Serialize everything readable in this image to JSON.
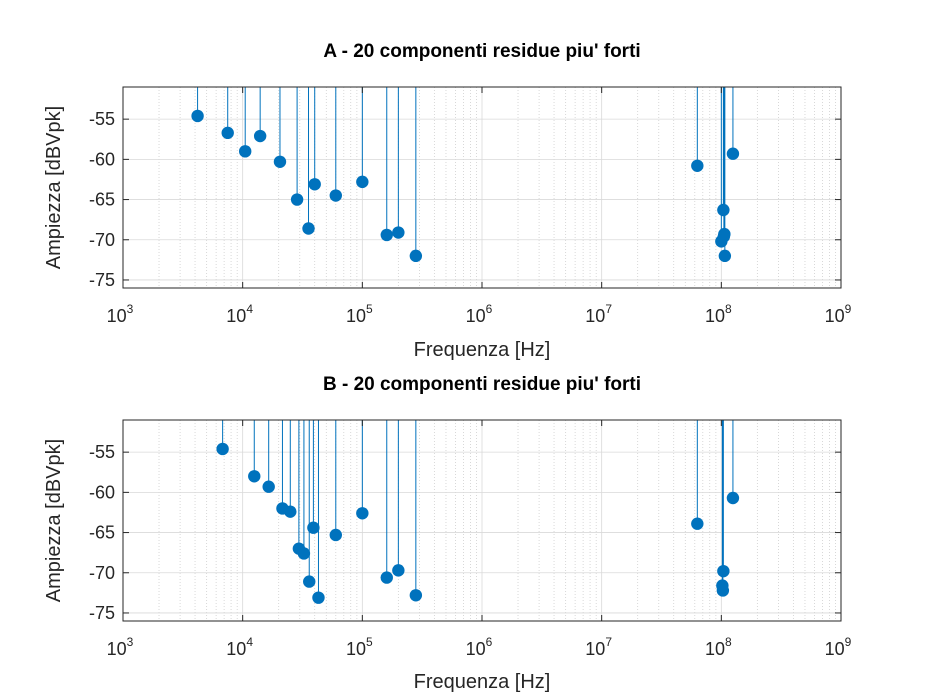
{
  "figure": {
    "background": "#ffffff",
    "marker_color": "#0072bd",
    "grid_color": "#d9d9d9",
    "axis_color": "#262626"
  },
  "chart_data": [
    {
      "type": "scatter",
      "style": "stem",
      "title": "A - 20 componenti residue piu' forti",
      "xlabel": "Frequenza [Hz]",
      "ylabel": "Ampiezza [dBVpk]",
      "xscale": "log",
      "xlim": [
        1000,
        1000000000
      ],
      "ylim": [
        -76,
        -51
      ],
      "xticks": [
        {
          "base": "10",
          "exp": "3",
          "value": 1000
        },
        {
          "base": "10",
          "exp": "4",
          "value": 10000
        },
        {
          "base": "10",
          "exp": "5",
          "value": 100000
        },
        {
          "base": "10",
          "exp": "6",
          "value": 1000000
        },
        {
          "base": "10",
          "exp": "7",
          "value": 10000000
        },
        {
          "base": "10",
          "exp": "8",
          "value": 100000000
        },
        {
          "base": "10",
          "exp": "9",
          "value": 1000000000
        }
      ],
      "yticks": [
        -55,
        -60,
        -65,
        -70,
        -75
      ],
      "grid": true,
      "stem_baseline": -51,
      "points": [
        {
          "x": 4200,
          "y": -54.6
        },
        {
          "x": 7500,
          "y": -56.7
        },
        {
          "x": 10500,
          "y": -59.0
        },
        {
          "x": 14000,
          "y": -57.1
        },
        {
          "x": 20500,
          "y": -60.3
        },
        {
          "x": 28500,
          "y": -65.0
        },
        {
          "x": 35500,
          "y": -68.6
        },
        {
          "x": 40000,
          "y": -63.1
        },
        {
          "x": 60000,
          "y": -64.5
        },
        {
          "x": 100000,
          "y": -62.8
        },
        {
          "x": 160000,
          "y": -69.4
        },
        {
          "x": 200000,
          "y": -69.1
        },
        {
          "x": 280000,
          "y": -72.0
        },
        {
          "x": 63000000,
          "y": -60.8
        },
        {
          "x": 100000000,
          "y": -70.2
        },
        {
          "x": 104000000,
          "y": -66.3
        },
        {
          "x": 106000000,
          "y": -69.3
        },
        {
          "x": 105000000,
          "y": -69.6
        },
        {
          "x": 107000000,
          "y": -72.0
        },
        {
          "x": 125000000,
          "y": -59.3
        }
      ]
    },
    {
      "type": "scatter",
      "style": "stem",
      "title": "B - 20 componenti residue piu' forti",
      "xlabel": "Frequenza [Hz]",
      "ylabel": "Ampiezza [dBVpk]",
      "xscale": "log",
      "xlim": [
        1000,
        1000000000
      ],
      "ylim": [
        -76,
        -51
      ],
      "xticks": [
        {
          "base": "10",
          "exp": "3",
          "value": 1000
        },
        {
          "base": "10",
          "exp": "4",
          "value": 10000
        },
        {
          "base": "10",
          "exp": "5",
          "value": 100000
        },
        {
          "base": "10",
          "exp": "6",
          "value": 1000000
        },
        {
          "base": "10",
          "exp": "7",
          "value": 10000000
        },
        {
          "base": "10",
          "exp": "8",
          "value": 100000000
        },
        {
          "base": "10",
          "exp": "9",
          "value": 1000000000
        }
      ],
      "yticks": [
        -55,
        -60,
        -65,
        -70,
        -75
      ],
      "grid": true,
      "stem_baseline": -51,
      "points": [
        {
          "x": 6800,
          "y": -54.6
        },
        {
          "x": 12500,
          "y": -58.0
        },
        {
          "x": 16500,
          "y": -59.3
        },
        {
          "x": 21500,
          "y": -62.0
        },
        {
          "x": 25000,
          "y": -62.4
        },
        {
          "x": 29500,
          "y": -67.0
        },
        {
          "x": 32500,
          "y": -67.6
        },
        {
          "x": 36000,
          "y": -71.1
        },
        {
          "x": 39000,
          "y": -64.4
        },
        {
          "x": 43000,
          "y": -73.1
        },
        {
          "x": 60000,
          "y": -65.3
        },
        {
          "x": 100000,
          "y": -62.6
        },
        {
          "x": 160000,
          "y": -70.6
        },
        {
          "x": 200000,
          "y": -69.7
        },
        {
          "x": 280000,
          "y": -72.8
        },
        {
          "x": 63000000,
          "y": -63.9
        },
        {
          "x": 102000000,
          "y": -71.6
        },
        {
          "x": 104000000,
          "y": -69.8
        },
        {
          "x": 103000000,
          "y": -72.2
        },
        {
          "x": 125000000,
          "y": -60.7
        }
      ]
    }
  ]
}
